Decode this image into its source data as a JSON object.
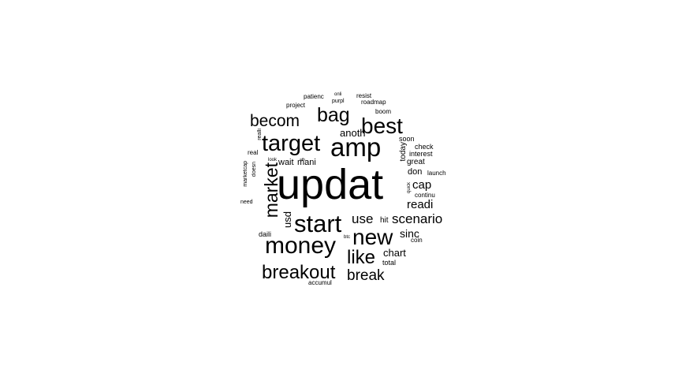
{
  "word_cloud": {
    "text_color": "#000000",
    "background": "#ffffff",
    "words": [
      {
        "id": "updat",
        "text": "updat",
        "weight": 100,
        "orientation": "horizontal"
      },
      {
        "id": "amp",
        "text": "amp",
        "weight": 50,
        "orientation": "horizontal"
      },
      {
        "id": "target",
        "text": "target",
        "weight": 46,
        "orientation": "horizontal"
      },
      {
        "id": "money",
        "text": "money",
        "weight": 44,
        "orientation": "horizontal"
      },
      {
        "id": "start",
        "text": "start",
        "weight": 44,
        "orientation": "horizontal"
      },
      {
        "id": "market",
        "text": "market",
        "weight": 38,
        "orientation": "vertical"
      },
      {
        "id": "new",
        "text": "new",
        "weight": 38,
        "orientation": "horizontal"
      },
      {
        "id": "best",
        "text": "best",
        "weight": 34,
        "orientation": "horizontal"
      },
      {
        "id": "breakout",
        "text": "breakout",
        "weight": 32,
        "orientation": "horizontal"
      },
      {
        "id": "bag",
        "text": "bag",
        "weight": 30,
        "orientation": "horizontal"
      },
      {
        "id": "like",
        "text": "like",
        "weight": 29,
        "orientation": "horizontal"
      },
      {
        "id": "becom",
        "text": "becom",
        "weight": 27,
        "orientation": "horizontal"
      },
      {
        "id": "break",
        "text": "break",
        "weight": 24,
        "orientation": "horizontal"
      },
      {
        "id": "scenario",
        "text": "scenario",
        "weight": 22,
        "orientation": "horizontal"
      },
      {
        "id": "use",
        "text": "use",
        "weight": 21,
        "orientation": "horizontal"
      },
      {
        "id": "readi",
        "text": "readi",
        "weight": 19,
        "orientation": "horizontal"
      },
      {
        "id": "cap",
        "text": "cap",
        "weight": 18,
        "orientation": "horizontal"
      },
      {
        "id": "chart",
        "text": "chart",
        "weight": 17,
        "orientation": "horizontal"
      },
      {
        "id": "sinc",
        "text": "sinc",
        "weight": 17,
        "orientation": "horizontal"
      },
      {
        "id": "usd",
        "text": "usd",
        "weight": 17,
        "orientation": "vertical"
      },
      {
        "id": "anoth",
        "text": "anoth",
        "weight": 16,
        "orientation": "horizontal"
      },
      {
        "id": "mani",
        "text": "mani",
        "weight": 13,
        "orientation": "horizontal"
      },
      {
        "id": "wait",
        "text": "wait",
        "weight": 13,
        "orientation": "horizontal"
      },
      {
        "id": "don",
        "text": "don",
        "weight": 13,
        "orientation": "horizontal"
      },
      {
        "id": "great",
        "text": "great",
        "weight": 12,
        "orientation": "horizontal"
      },
      {
        "id": "hit",
        "text": "hit",
        "weight": 12,
        "orientation": "horizontal"
      },
      {
        "id": "today",
        "text": "today",
        "weight": 12,
        "orientation": "vertical"
      },
      {
        "id": "interest",
        "text": "interest",
        "weight": 11,
        "orientation": "horizontal"
      },
      {
        "id": "soon",
        "text": "soon",
        "weight": 10,
        "orientation": "horizontal"
      },
      {
        "id": "check",
        "text": "check",
        "weight": 10,
        "orientation": "horizontal"
      },
      {
        "id": "daili",
        "text": "daili",
        "weight": 10,
        "orientation": "horizontal"
      },
      {
        "id": "total",
        "text": "total",
        "weight": 10,
        "orientation": "horizontal"
      },
      {
        "id": "coin",
        "text": "coin",
        "weight": 9,
        "orientation": "horizontal"
      },
      {
        "id": "continu",
        "text": "continu",
        "weight": 9,
        "orientation": "horizontal"
      },
      {
        "id": "launch",
        "text": "launch",
        "weight": 9,
        "orientation": "horizontal"
      },
      {
        "id": "project",
        "text": "project",
        "weight": 9,
        "orientation": "horizontal"
      },
      {
        "id": "real",
        "text": "real",
        "weight": 9,
        "orientation": "horizontal"
      },
      {
        "id": "boom",
        "text": "boom",
        "weight": 9,
        "orientation": "horizontal"
      },
      {
        "id": "roadmap",
        "text": "roadmap",
        "weight": 9,
        "orientation": "horizontal"
      },
      {
        "id": "resist",
        "text": "resist",
        "weight": 9,
        "orientation": "horizontal"
      },
      {
        "id": "patienc",
        "text": "patienc",
        "weight": 9,
        "orientation": "horizontal"
      },
      {
        "id": "accumul",
        "text": "accumul",
        "weight": 9,
        "orientation": "horizontal"
      },
      {
        "id": "purpl",
        "text": "purpl",
        "weight": 8,
        "orientation": "horizontal"
      },
      {
        "id": "marketcap",
        "text": "marketcap",
        "weight": 8,
        "orientation": "vertical"
      },
      {
        "id": "doesn",
        "text": "doesn",
        "weight": 8,
        "orientation": "vertical"
      },
      {
        "id": "realli",
        "text": "realli",
        "weight": 8,
        "orientation": "vertical"
      },
      {
        "id": "look",
        "text": "look",
        "weight": 7,
        "orientation": "horizontal"
      },
      {
        "id": "onli",
        "text": "onli",
        "weight": 7,
        "orientation": "horizontal"
      },
      {
        "id": "need",
        "text": "need",
        "weight": 7,
        "orientation": "horizontal"
      },
      {
        "id": "quick",
        "text": "quick",
        "weight": 7,
        "orientation": "vertical"
      },
      {
        "id": "btc",
        "text": "btc",
        "weight": 6,
        "orientation": "horizontal"
      },
      {
        "id": "ath",
        "text": "ath",
        "weight": 6,
        "orientation": "horizontal"
      }
    ]
  }
}
